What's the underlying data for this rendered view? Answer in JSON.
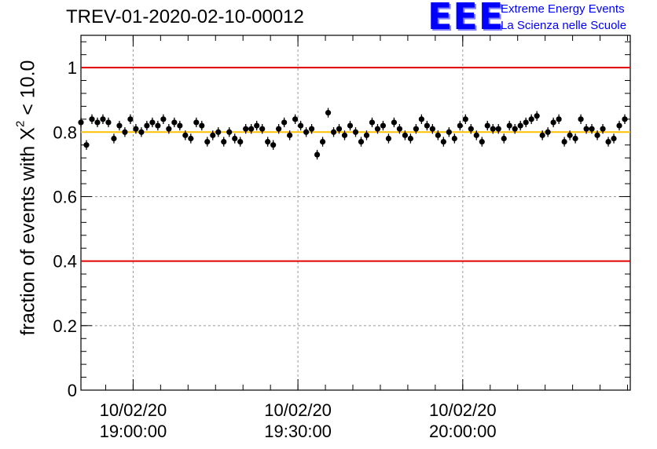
{
  "header": {
    "title": "TREV-01-2020-02-10-00012",
    "logo_mark": "EEE",
    "logo_line1": "Extreme Energy Events",
    "logo_line2": "La Scienza nelle Scuole"
  },
  "axis": {
    "ylabel_main": "fraction of events with X",
    "ylabel_sup": "2",
    "ylabel_tail": " < 10.0"
  },
  "colors": {
    "limit_lines": "#e00000",
    "mean_line": "#ffc000",
    "points": "#000000",
    "grid": "#999999"
  },
  "chart_data": {
    "type": "scatter",
    "title": "TREV-01-2020-02-10-00012",
    "xlabel": "",
    "ylabel": "fraction of events with X^2 < 10.0",
    "ylim": [
      0,
      1.1
    ],
    "xlim": [
      "10/02/20 18:50:30",
      "10/02/20 20:30:30"
    ],
    "yticks": [
      "0",
      "0.2",
      "0.4",
      "0.6",
      "0.8",
      "1"
    ],
    "xticks": [
      {
        "date": "10/02/20",
        "time": "19:00:00"
      },
      {
        "date": "10/02/20",
        "time": "19:30:00"
      },
      {
        "date": "10/02/20",
        "time": "20:00:00"
      }
    ],
    "grid": true,
    "reference_lines": [
      {
        "y": 1.0,
        "color": "red"
      },
      {
        "y": 0.4,
        "color": "red"
      },
      {
        "y": 0.8,
        "color": "orange"
      }
    ],
    "error_bar": 0.015,
    "series": [
      {
        "start": "10/02/20 18:50:30",
        "step_seconds": 60,
        "values": [
          0.83,
          0.76,
          0.84,
          0.83,
          0.84,
          0.83,
          0.78,
          0.82,
          0.8,
          0.84,
          0.81,
          0.8,
          0.82,
          0.83,
          0.82,
          0.84,
          0.81,
          0.83,
          0.82,
          0.79,
          0.78,
          0.83,
          0.82,
          0.77,
          0.79,
          0.8,
          0.77,
          0.8,
          0.78,
          0.77,
          0.81,
          0.81,
          0.82,
          0.81,
          0.77,
          0.76,
          0.81,
          0.83,
          0.79,
          0.84,
          0.82,
          0.8,
          0.81,
          0.73,
          0.77,
          0.86,
          0.8,
          0.81,
          0.79,
          0.82,
          0.8,
          0.77,
          0.79,
          0.83,
          0.81,
          0.82,
          0.78,
          0.83,
          0.81,
          0.79,
          0.78,
          0.81,
          0.84,
          0.82,
          0.81,
          0.79,
          0.77,
          0.8,
          0.78,
          0.82,
          0.84,
          0.81,
          0.79,
          0.77,
          0.82,
          0.81,
          0.81,
          0.78,
          0.82,
          0.81,
          0.82,
          0.83,
          0.84,
          0.85,
          0.79,
          0.8,
          0.83,
          0.84,
          0.77,
          0.79,
          0.78,
          0.84,
          0.81,
          0.81,
          0.79,
          0.81,
          0.77,
          0.78,
          0.82,
          0.84
        ]
      }
    ]
  }
}
